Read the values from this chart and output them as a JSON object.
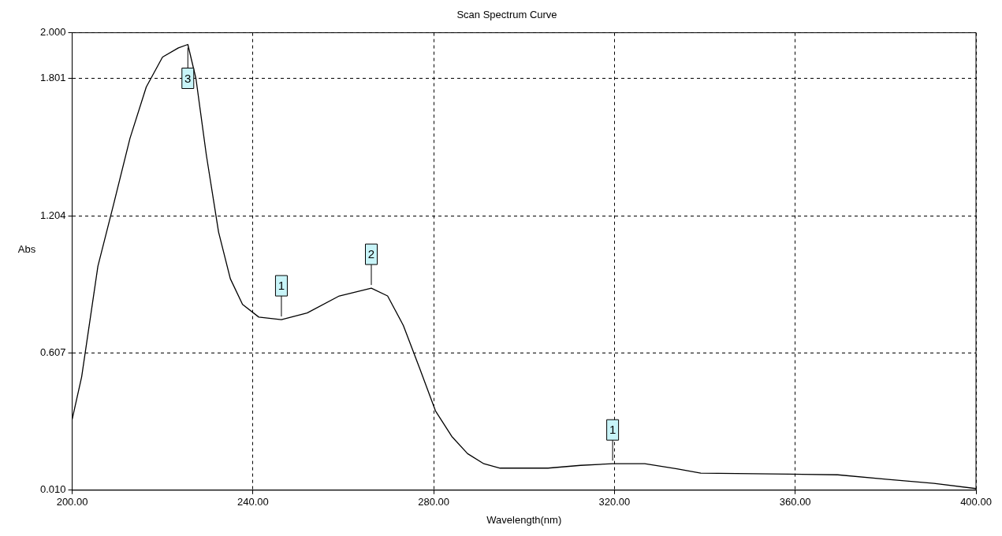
{
  "chart_data": {
    "type": "line",
    "title": "Scan Spectrum Curve",
    "xlabel": "Wavelength(nm)",
    "ylabel": "Abs",
    "xlim": [
      200,
      400
    ],
    "ylim": [
      0.01,
      2.0
    ],
    "xticks": [
      {
        "value": 200,
        "label": "200.00"
      },
      {
        "value": 240,
        "label": "240.00"
      },
      {
        "value": 280,
        "label": "280.00"
      },
      {
        "value": 320,
        "label": "320.00"
      },
      {
        "value": 360,
        "label": "360.00"
      },
      {
        "value": 400,
        "label": "400.00"
      }
    ],
    "yticks": [
      {
        "value": 0.01,
        "label": "0.010"
      },
      {
        "value": 0.607,
        "label": "0.607"
      },
      {
        "value": 1.204,
        "label": "1.204"
      },
      {
        "value": 1.801,
        "label": "1.801"
      },
      {
        "value": 2.0,
        "label": "2.000"
      }
    ],
    "grid": true,
    "legend": false,
    "marker": "none",
    "line_style": "solid",
    "series": [
      {
        "color": "#000000",
        "x": [
          200,
          202.1,
          205.7,
          209.3,
          212.8,
          216.4,
          220,
          223.5,
          225.6,
          227.4,
          229.7,
          232.4,
          235,
          237.7,
          241.3,
          246.3,
          252,
          259.1,
          266.2,
          269.8,
          273.3,
          276.9,
          280.4,
          284,
          287.5,
          291.1,
          294.7,
          305.3,
          312.5,
          319.6,
          326.7,
          333.8,
          339.1,
          358.7,
          369.4,
          380.1,
          390.7,
          400
        ],
        "values": [
          0.318,
          0.503,
          0.985,
          1.264,
          1.541,
          1.764,
          1.894,
          1.934,
          1.949,
          1.8,
          1.467,
          1.133,
          0.93,
          0.818,
          0.763,
          0.752,
          0.781,
          0.855,
          0.889,
          0.855,
          0.726,
          0.54,
          0.355,
          0.244,
          0.169,
          0.125,
          0.106,
          0.106,
          0.118,
          0.125,
          0.125,
          0.103,
          0.084,
          0.08,
          0.077,
          0.058,
          0.04,
          0.017
        ]
      }
    ],
    "annotations": [
      {
        "text": "3",
        "x": 225.6,
        "y": 1.949
      },
      {
        "text": "1",
        "x": 246.3,
        "y": 0.752
      },
      {
        "text": "2",
        "x": 266.2,
        "y": 0.889
      },
      {
        "text": "1",
        "x": 319.6,
        "y": 0.125
      }
    ]
  }
}
